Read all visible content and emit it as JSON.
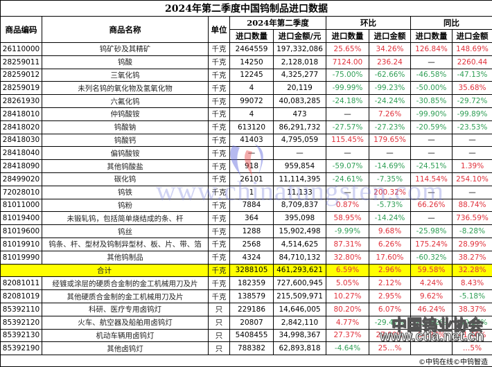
{
  "title": "2024年第二季度中国钨制品进口数据",
  "headers": {
    "code": "商品编码",
    "name": "商品名称",
    "unit": "单位",
    "period_group": "2024年第二季度",
    "mom_group": "环比",
    "yoy_group": "同比",
    "qty": "进口数量",
    "amount": "进口金额/元",
    "mom_qty": "进口数量",
    "mom_amount": "进口金额",
    "yoy_qty": "进口数量",
    "yoy_amount": "进口金额"
  },
  "colors": {
    "positive": "#e0303a",
    "negative": "#2f9e55",
    "total_bg": "#ffff00"
  },
  "rows": [
    {
      "code": "26110000",
      "name": "钨矿砂及其精矿",
      "unit": "千克",
      "qty": "2464559",
      "amount": "197,332,086",
      "mom_qty": "25.65%",
      "mom_amount": "34.26%",
      "yoy_qty": "126.84%",
      "yoy_amount": "148.69%"
    },
    {
      "code": "28259011",
      "name": "钨酸",
      "unit": "千克",
      "qty": "14250",
      "amount": "2,128,018",
      "mom_qty": "7124.00",
      "mom_amount": "236.24",
      "yoy_qty": "—",
      "yoy_amount": "2260.44"
    },
    {
      "code": "28259012",
      "name": "三氧化钨",
      "unit": "千克",
      "qty": "12245",
      "amount": "4,325,277",
      "mom_qty": "-75.00%",
      "mom_amount": "-62.66%",
      "yoy_qty": "-46.58%",
      "yoy_amount": "-47.13%"
    },
    {
      "code": "28259019",
      "name": "未列名钨的氧化物及氢氧化物",
      "unit": "千克",
      "qty": "4",
      "amount": "20,119",
      "mom_qty": "-99.99%",
      "mom_amount": "-99.23%",
      "yoy_qty": "-50.00%",
      "yoy_amount": "35.68%"
    },
    {
      "code": "28261930",
      "name": "六氟化钨",
      "unit": "千克",
      "qty": "99072",
      "amount": "40,083,285",
      "mom_qty": "-24.18%",
      "mom_amount": "-24.24%",
      "yoy_qty": "-30.85%",
      "yoy_amount": "-29.72%"
    },
    {
      "code": "28418010",
      "name": "仲钨酸铵",
      "unit": "千克",
      "qty": "4",
      "amount": "473",
      "mom_qty": "—",
      "mom_amount": "7.26%",
      "yoy_qty": "-99.90%",
      "yoy_amount": "-99.89%"
    },
    {
      "code": "28418020",
      "name": "钨酸钠",
      "unit": "千克",
      "qty": "613120",
      "amount": "86,291,732",
      "mom_qty": "-27.57%",
      "mom_amount": "-27.23%",
      "yoy_qty": "-20.59%",
      "yoy_amount": "-23.53%"
    },
    {
      "code": "28418030",
      "name": "钨酸钙",
      "unit": "千克",
      "qty": "41403",
      "amount": "4,795,059",
      "mom_qty": "115.45%",
      "mom_amount": "179.65%",
      "yoy_qty": "—",
      "yoy_amount": "—"
    },
    {
      "code": "28418040",
      "name": "偏钨酸铵",
      "unit": "千克",
      "qty": "—",
      "amount": "—",
      "mom_qty": "—",
      "mom_amount": "—",
      "yoy_qty": "—",
      "yoy_amount": "—"
    },
    {
      "code": "28418090",
      "name": "其他钨酸盐",
      "unit": "千克",
      "qty": "918",
      "amount": "959,854",
      "mom_qty": "-59.07%",
      "mom_amount": "-14.69%",
      "yoy_qty": "-24.51%",
      "yoy_amount": "1.39%"
    },
    {
      "code": "28499020",
      "name": "碳化钨",
      "unit": "千克",
      "qty": "26101",
      "amount": "11,114,395",
      "mom_qty": "-24.61%",
      "mom_amount": "-7.35%",
      "yoy_qty": "114.54%",
      "yoy_amount": "254.10%"
    },
    {
      "code": "72028010",
      "name": "钨铁",
      "unit": "千克",
      "qty": "1",
      "amount": "11,133",
      "mom_qty": "—",
      "mom_amount": "200.32%",
      "yoy_qty": "—",
      "yoy_amount": "—"
    },
    {
      "code": "81011000",
      "name": "钨粉",
      "unit": "千克",
      "qty": "7884",
      "amount": "8,709,837",
      "mom_qty": "0.87%",
      "mom_amount": "-5.73%",
      "yoy_qty": "66.26%",
      "yoy_amount": "88.74%"
    },
    {
      "code": "81019400",
      "name": "未锻轧钨，包括简单烧结成的条、杆",
      "unit": "千克",
      "qty": "364",
      "amount": "395,098",
      "mom_qty": "58.95%",
      "mom_amount": "-14.24%",
      "yoy_qty": "—",
      "yoy_amount": "736.59%"
    },
    {
      "code": "81019600",
      "name": "钨丝",
      "unit": "千克",
      "qty": "1288",
      "amount": "15,902,498",
      "mom_qty": "-9.99%",
      "mom_amount": "9.68%",
      "yoy_qty": "-25.98%",
      "yoy_amount": "-8.28%"
    },
    {
      "code": "81019910",
      "name": "钨条、杆、型材及钨制异型材、板、片、带、箔",
      "unit": "千克",
      "qty": "2568",
      "amount": "4,514,625",
      "mom_qty": "87.31%",
      "mom_amount": "6.26%",
      "yoy_qty": "175.24%",
      "yoy_amount": "28.99%"
    },
    {
      "code": "81019990",
      "name": "其他钨制品",
      "unit": "千克",
      "qty": "4324",
      "amount": "84,710,132",
      "mom_qty": "32.80%",
      "mom_amount": "17.60%",
      "yoy_qty": "-60.32%",
      "yoy_amount": "38.27%"
    }
  ],
  "total": {
    "label": "合计",
    "unit": "千克",
    "qty": "3288105",
    "amount": "461,293,621",
    "mom_qty": "6.59%",
    "mom_amount": "2.96%",
    "yoy_qty": "59.58%",
    "yoy_amount": "32.28%"
  },
  "rows2": [
    {
      "code": "82081011",
      "name": "经镀或涂层的硬质合金制的金工机械用刀及片",
      "unit": "千克",
      "qty": "182359",
      "amount": "727,600,945",
      "mom_qty": "5.05%",
      "mom_amount": "2.12%",
      "yoy_qty": "4.24%",
      "yoy_amount": "8.43%"
    },
    {
      "code": "82081019",
      "name": "其他硬质合金制的金工机械用刀及片",
      "unit": "千克",
      "qty": "138579",
      "amount": "215,509,971",
      "mom_qty": "10.27%",
      "mom_amount": "2.95%",
      "yoy_qty": "9.62%",
      "yoy_amount": "-5.18%"
    },
    {
      "code": "85392110",
      "name": "科研、医疗专用卤钨灯",
      "unit": "只",
      "qty": "229186",
      "amount": "14,646,005",
      "mom_qty": "80.20%",
      "mom_amount": "6.07%",
      "yoy_qty": "46.24%",
      "yoy_amount": "38.37%"
    },
    {
      "code": "85392120",
      "name": "火车、航空器及船舶用卤钨灯",
      "unit": "只",
      "qty": "20807",
      "amount": "2,842,110",
      "mom_qty": "4.77%",
      "mom_amount": "-29.47%",
      "yoy_qty": "-12.62%",
      "yoy_amount": "-30.57%"
    },
    {
      "code": "85392130",
      "name": "机动车辆用卤钨灯",
      "unit": "只",
      "qty": "5408455",
      "amount": "34,998,367",
      "mom_qty": "27.37%",
      "mom_amount": "27.90%",
      "yoy_qty": "64.27%",
      "yoy_amount": "41.46%"
    },
    {
      "code": "85392190",
      "name": "其他卤钨灯",
      "unit": "只",
      "qty": "788382",
      "amount": "62,893,818",
      "mom_qty": "-4.64%",
      "mom_amount": "25…%",
      "yoy_qty": "",
      "yoy_amount": "…5%"
    }
  ],
  "footer": "©中钨在线©中钨智造",
  "watermarks": {
    "site": "www.chinatungsten.com",
    "assoc": "中国钨业协会",
    "assoc_site": "www.ctia.net.cn"
  }
}
